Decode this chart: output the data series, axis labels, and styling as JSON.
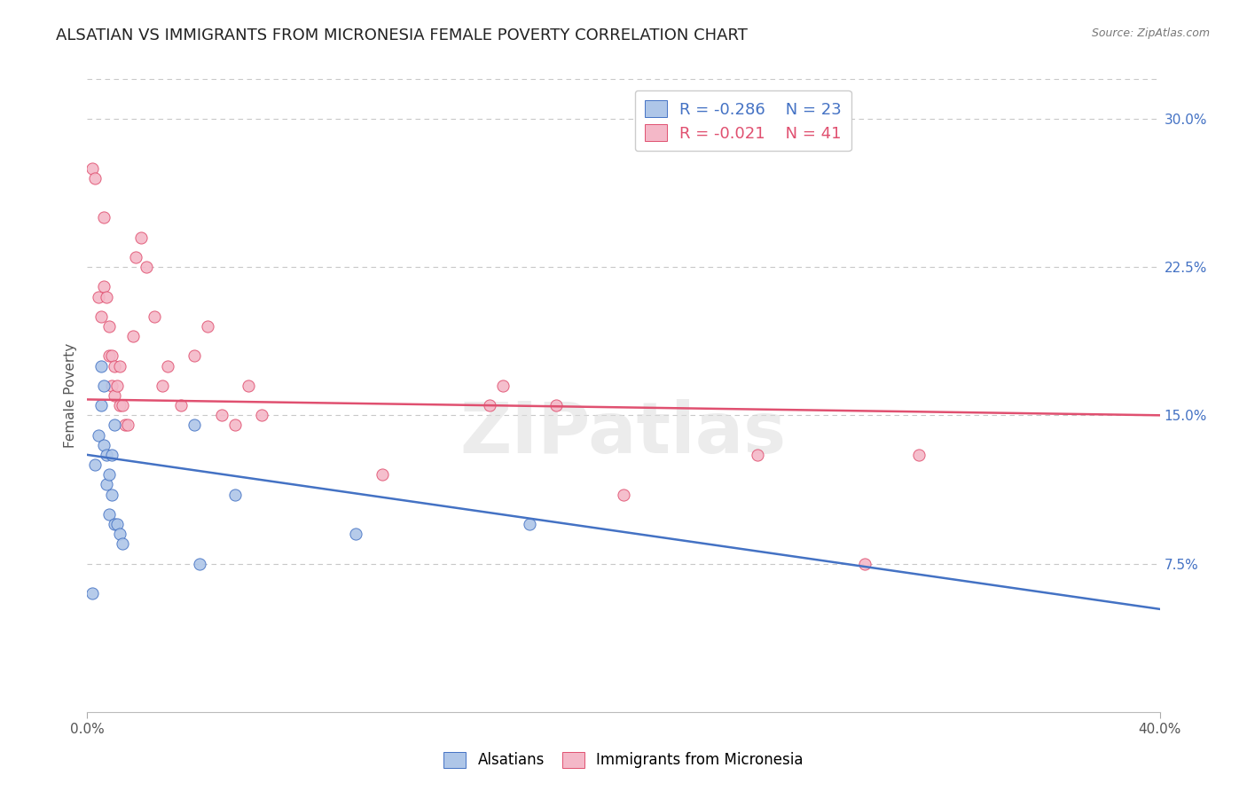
{
  "title": "ALSATIAN VS IMMIGRANTS FROM MICRONESIA FEMALE POVERTY CORRELATION CHART",
  "source": "Source: ZipAtlas.com",
  "ylabel": "Female Poverty",
  "right_yticks": [
    "30.0%",
    "22.5%",
    "15.0%",
    "7.5%"
  ],
  "right_ytick_vals": [
    0.3,
    0.225,
    0.15,
    0.075
  ],
  "legend_blue_r": "-0.286",
  "legend_blue_n": "23",
  "legend_pink_r": "-0.021",
  "legend_pink_n": "41",
  "legend_blue_label": "Alsatians",
  "legend_pink_label": "Immigrants from Micronesia",
  "blue_fill": "#AEC6E8",
  "pink_fill": "#F4B8C8",
  "line_blue_color": "#4472C4",
  "line_pink_color": "#E05070",
  "watermark": "ZIPatlas",
  "background_color": "#FFFFFF",
  "alsatians_x": [
    0.002,
    0.003,
    0.004,
    0.005,
    0.005,
    0.006,
    0.006,
    0.007,
    0.007,
    0.008,
    0.008,
    0.009,
    0.009,
    0.01,
    0.01,
    0.011,
    0.012,
    0.013,
    0.04,
    0.042,
    0.055,
    0.1,
    0.165
  ],
  "alsatians_y": [
    0.06,
    0.125,
    0.14,
    0.155,
    0.175,
    0.135,
    0.165,
    0.115,
    0.13,
    0.12,
    0.1,
    0.13,
    0.11,
    0.095,
    0.145,
    0.095,
    0.09,
    0.085,
    0.145,
    0.075,
    0.11,
    0.09,
    0.095
  ],
  "micronesia_x": [
    0.002,
    0.003,
    0.004,
    0.005,
    0.006,
    0.006,
    0.007,
    0.008,
    0.008,
    0.009,
    0.009,
    0.01,
    0.01,
    0.011,
    0.012,
    0.012,
    0.013,
    0.014,
    0.015,
    0.017,
    0.018,
    0.02,
    0.022,
    0.025,
    0.028,
    0.03,
    0.035,
    0.04,
    0.045,
    0.05,
    0.055,
    0.06,
    0.065,
    0.11,
    0.15,
    0.155,
    0.175,
    0.2,
    0.25,
    0.29,
    0.31
  ],
  "micronesia_y": [
    0.275,
    0.27,
    0.21,
    0.2,
    0.215,
    0.25,
    0.21,
    0.195,
    0.18,
    0.18,
    0.165,
    0.175,
    0.16,
    0.165,
    0.155,
    0.175,
    0.155,
    0.145,
    0.145,
    0.19,
    0.23,
    0.24,
    0.225,
    0.2,
    0.165,
    0.175,
    0.155,
    0.18,
    0.195,
    0.15,
    0.145,
    0.165,
    0.15,
    0.12,
    0.155,
    0.165,
    0.155,
    0.11,
    0.13,
    0.075,
    0.13
  ],
  "blue_line_x0": 0.0,
  "blue_line_y0": 0.13,
  "blue_line_x1": 0.4,
  "blue_line_y1": 0.052,
  "pink_line_x0": 0.0,
  "pink_line_y0": 0.158,
  "pink_line_x1": 0.4,
  "pink_line_y1": 0.15,
  "xlim": [
    0.0,
    0.4
  ],
  "ylim": [
    0.0,
    0.32
  ],
  "grid_color": "#C8C8C8",
  "title_fontsize": 13,
  "label_fontsize": 11,
  "tick_fontsize": 11,
  "marker_size": 90
}
